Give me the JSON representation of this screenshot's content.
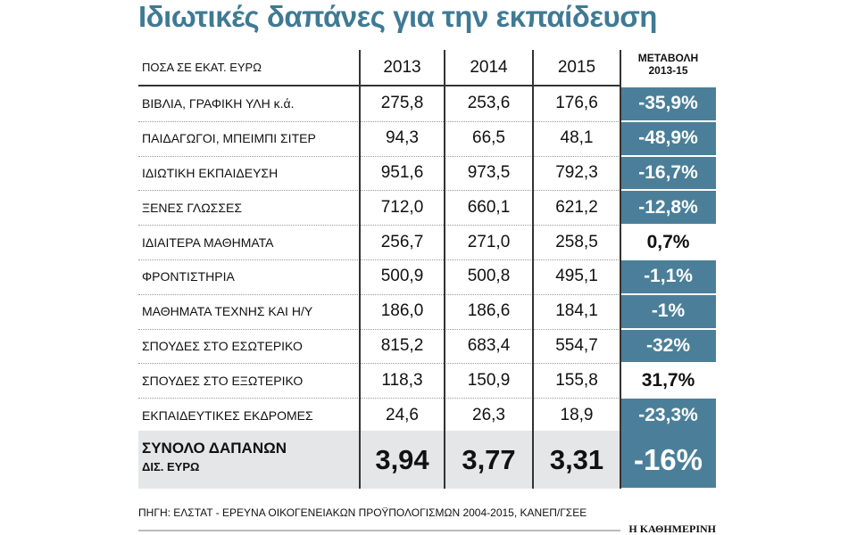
{
  "header": {
    "title": "Ιδιωτικές δαπάνες για την εκπαίδευση"
  },
  "table": {
    "columns": [
      "ΠΟΣΑ ΣΕ ΕΚΑΤ. ΕΥΡΩ",
      "2013",
      "2014",
      "2015",
      "ΜΕΤΑΒΟΛΗ 2013-15"
    ],
    "rows": [
      [
        "ΒΙΒΛΙΑ, ΓΡΑΦΙΚΗ ΥΛΗ κ.ά.",
        "275,8",
        "253,6",
        "176,6",
        "-35,9%"
      ],
      [
        "ΠΑΙΔΑΓΩΓΟΙ, ΜΠΕΙΜΠΙ ΣΙΤΕΡ",
        "94,3",
        "66,5",
        "48,1",
        "-48,9%"
      ],
      [
        "ΙΔΙΩΤΙΚΗ ΕΚΠΑΙΔΕΥΣΗ",
        "951,6",
        "973,5",
        "792,3",
        "-16,7%"
      ],
      [
        "ΞΕΝΕΣ ΓΛΩΣΣΕΣ",
        "712,0",
        "660,1",
        "621,2",
        "-12,8%"
      ],
      [
        "ΙΔΙΑΙΤΕΡΑ ΜΑΘΗΜΑΤΑ",
        "256,7",
        "271,0",
        "258,5",
        "0,7%"
      ],
      [
        "ΦΡΟΝΤΙΣΤΗΡΙΑ",
        "500,9",
        "500,8",
        "495,1",
        "-1,1%"
      ],
      [
        "ΜΑΘΗΜΑΤΑ ΤΕΧΝΗΣ ΚΑΙ Η/Υ",
        "186,0",
        "186,6",
        "184,1",
        "-1%"
      ],
      [
        "ΣΠΟΥΔΕΣ ΣΤΟ ΕΣΩΤΕΡΙΚΟ",
        "815,2",
        "683,4",
        "554,7",
        "-32%"
      ],
      [
        "ΣΠΟΥΔΕΣ ΣΤΟ ΕΞΩΤΕΡΙΚΟ",
        "118,3",
        "150,9",
        "155,8",
        "31,7%"
      ],
      [
        "ΕΚΠΑΙΔΕΥΤΙΚΕΣ ΕΚΔΡΟΜΕΣ",
        "24,6",
        "26,3",
        "18,9",
        "-23,3%"
      ]
    ],
    "total": [
      "ΣΥΝΟΛΟ ΔΑΠΑΝΩΝ",
      "ΔΙΣ. ΕΥΡΩ",
      "3,94",
      "3,77",
      "3,31",
      "-16%"
    ]
  },
  "footer": {
    "source": "ΠΗΓΗ: ΕΛΣΤΑΤ - ΕΡΕΥΝΑ ΟΙΚΟΓΕΝΕΙΑΚΩΝ ΠΡΟΫΠΟΛΟΓΙΣΜΩΝ 2004-2015, ΚΑΝΕΠ/ΓΣΕΕ",
    "brand": "Η ΚΑΘΗΜΕΡΙΝΗ"
  }
}
